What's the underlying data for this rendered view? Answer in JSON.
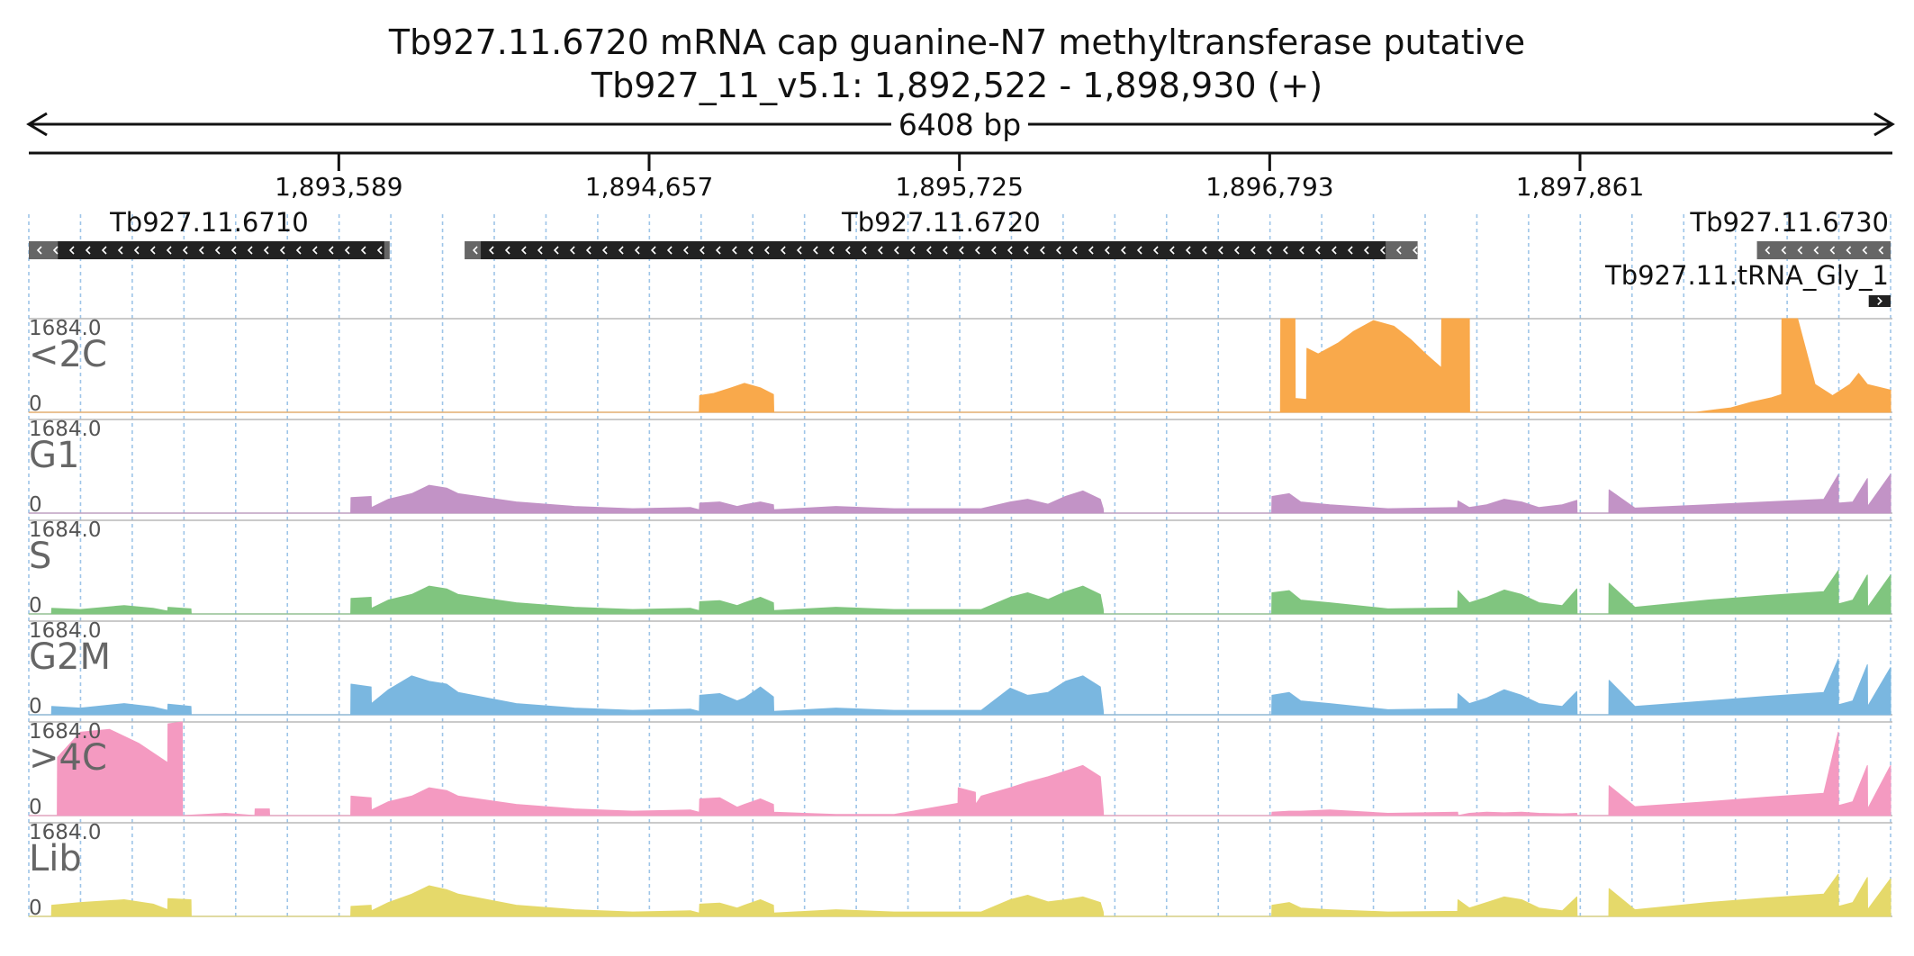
{
  "header": {
    "title": "Tb927.11.6720  mRNA cap guanine-N7 methyltransferase  putative",
    "locus": "Tb927_11_v5.1: 1,892,522 - 1,898,930 (+)",
    "span": "6408 bp"
  },
  "colors": {
    "axis": "#111111",
    "grid": "#9ec5e8",
    "gene_body": "#222222",
    "gene_utr": "#666666",
    "track_border": "#b8b8b8"
  },
  "chart_data": {
    "type": "area",
    "title": "Tb927.11.6720  mRNA cap guanine-N7 methyltransferase  putative",
    "xlabel": "",
    "ylabel": "",
    "xlim": [
      1892522,
      1898930
    ],
    "ticks": [
      {
        "value": 1893589,
        "label": "1,893,589"
      },
      {
        "value": 1894657,
        "label": "1,894,657"
      },
      {
        "value": 1895725,
        "label": "1,895,725"
      },
      {
        "value": 1896793,
        "label": "1,896,793"
      },
      {
        "value": 1897861,
        "label": "1,897,861"
      }
    ],
    "genes": [
      {
        "name": "Tb927.11.6710",
        "strand": "-",
        "start": 1892522,
        "end": 1893764,
        "utr_end": 1892622
      },
      {
        "name": "Tb927.11.6720",
        "strand": "-",
        "start": 1894022,
        "end": 1897302,
        "utr_end": 1897192
      },
      {
        "name": "Tb927.11.6730",
        "strand": "-",
        "start": 1898470,
        "end": 1898930,
        "utr_end": 1898930
      },
      {
        "name": "Tb927.11.tRNA_Gly_1",
        "strand": "+",
        "start": 1898855,
        "end": 1898930,
        "utr_end": 1898930
      }
    ],
    "series": [
      {
        "name": "<2C",
        "color": "#f9a94b",
        "max": 1684.0,
        "min": 0,
        "x": [
          1892522,
          1894830,
          1894831,
          1894880,
          1894940,
          1894985,
          1895040,
          1895085,
          1895086,
          1896830,
          1896831,
          1896880,
          1896881,
          1896920,
          1896921,
          1896960,
          1897030,
          1897080,
          1897150,
          1897220,
          1897280,
          1897330,
          1897384,
          1897385,
          1897440,
          1897441,
          1897480,
          1897481,
          1898260,
          1898380,
          1898450,
          1898520,
          1898555,
          1898556,
          1898610,
          1898670,
          1898730,
          1898790,
          1898820,
          1898850,
          1898930
        ],
        "y": [
          0,
          0,
          300,
          340,
          440,
          520,
          440,
          320,
          0,
          0,
          1684,
          1684,
          250,
          230,
          1150,
          1050,
          1250,
          1450,
          1650,
          1550,
          1300,
          1050,
          800,
          1684,
          1684,
          1684,
          1684,
          0,
          0,
          80,
          180,
          260,
          320,
          1684,
          1684,
          500,
          300,
          500,
          700,
          500,
          400
        ]
      },
      {
        "name": "G1",
        "color": "#c293c6",
        "max": 1684.0,
        "min": 0,
        "x": [
          1892522,
          1893630,
          1893631,
          1893700,
          1893701,
          1893760,
          1893840,
          1893900,
          1893960,
          1894000,
          1894200,
          1894400,
          1894600,
          1894800,
          1894830,
          1894831,
          1894900,
          1894960,
          1894985,
          1895040,
          1895085,
          1895086,
          1895300,
          1895500,
          1895800,
          1895900,
          1895960,
          1896030,
          1896090,
          1896150,
          1896210,
          1896220,
          1896221,
          1896800,
          1896801,
          1896860,
          1896900,
          1897000,
          1897200,
          1897440,
          1897441,
          1897480,
          1897540,
          1897600,
          1897660,
          1897720,
          1897800,
          1897850,
          1897851,
          1897960,
          1897961,
          1898050,
          1898300,
          1898500,
          1898700,
          1898750,
          1898751,
          1898800,
          1898850,
          1898851,
          1898930
        ],
        "y": [
          0,
          0,
          280,
          300,
          100,
          250,
          350,
          500,
          450,
          350,
          200,
          120,
          80,
          100,
          60,
          180,
          200,
          120,
          150,
          200,
          150,
          60,
          120,
          80,
          80,
          200,
          250,
          160,
          300,
          400,
          250,
          80,
          0,
          0,
          300,
          350,
          200,
          150,
          80,
          100,
          220,
          100,
          150,
          250,
          200,
          100,
          150,
          230,
          0,
          0,
          420,
          90,
          150,
          200,
          250,
          690,
          180,
          200,
          620,
          120,
          700
        ]
      },
      {
        "name": "S",
        "color": "#80c57f",
        "max": 1684.0,
        "min": 0,
        "x": [
          1892522,
          1892600,
          1892601,
          1892700,
          1892850,
          1892950,
          1893000,
          1893001,
          1893080,
          1893081,
          1893630,
          1893631,
          1893700,
          1893701,
          1893760,
          1893840,
          1893900,
          1893960,
          1894000,
          1894200,
          1894400,
          1894600,
          1894800,
          1894830,
          1894831,
          1894900,
          1894960,
          1894985,
          1895040,
          1895085,
          1895086,
          1895300,
          1895500,
          1895800,
          1895900,
          1895960,
          1896030,
          1896090,
          1896150,
          1896210,
          1896220,
          1896221,
          1896800,
          1896801,
          1896860,
          1896900,
          1897000,
          1897200,
          1897440,
          1897441,
          1897480,
          1897540,
          1897600,
          1897660,
          1897720,
          1897800,
          1897850,
          1897851,
          1897960,
          1897961,
          1898050,
          1898300,
          1898500,
          1898700,
          1898750,
          1898751,
          1898800,
          1898850,
          1898851,
          1898930
        ],
        "y": [
          0,
          0,
          100,
          80,
          150,
          100,
          50,
          120,
          90,
          0,
          0,
          280,
          300,
          100,
          250,
          350,
          500,
          450,
          350,
          200,
          120,
          80,
          100,
          60,
          220,
          240,
          150,
          200,
          300,
          200,
          60,
          120,
          80,
          80,
          300,
          380,
          260,
          400,
          500,
          350,
          80,
          0,
          0,
          380,
          420,
          250,
          200,
          90,
          110,
          420,
          200,
          300,
          430,
          350,
          200,
          150,
          450,
          0,
          0,
          550,
          120,
          250,
          330,
          400,
          780,
          180,
          250,
          700,
          120,
          700
        ]
      },
      {
        "name": "G2M",
        "color": "#7ab7e0",
        "max": 1684.0,
        "min": 0,
        "x": [
          1892522,
          1892600,
          1892601,
          1892700,
          1892850,
          1892950,
          1893000,
          1893001,
          1893080,
          1893081,
          1893630,
          1893631,
          1893700,
          1893701,
          1893760,
          1893840,
          1893900,
          1893960,
          1894000,
          1894200,
          1894400,
          1894600,
          1894800,
          1894830,
          1894831,
          1894900,
          1894960,
          1894985,
          1895040,
          1895085,
          1895086,
          1895300,
          1895500,
          1895800,
          1895900,
          1895960,
          1896030,
          1896090,
          1896150,
          1896210,
          1896220,
          1896221,
          1896800,
          1896801,
          1896860,
          1896900,
          1897000,
          1897200,
          1897440,
          1897441,
          1897480,
          1897540,
          1897600,
          1897660,
          1897720,
          1897800,
          1897850,
          1897851,
          1897960,
          1897961,
          1898050,
          1898300,
          1898500,
          1898700,
          1898750,
          1898751,
          1898800,
          1898850,
          1898851,
          1898930
        ],
        "y": [
          0,
          0,
          150,
          120,
          200,
          140,
          80,
          190,
          150,
          0,
          0,
          550,
          500,
          200,
          450,
          700,
          600,
          550,
          400,
          200,
          120,
          80,
          100,
          60,
          350,
          380,
          250,
          300,
          500,
          320,
          60,
          120,
          80,
          80,
          480,
          350,
          400,
          600,
          700,
          500,
          80,
          0,
          0,
          350,
          400,
          250,
          200,
          90,
          110,
          380,
          200,
          300,
          450,
          350,
          200,
          150,
          420,
          0,
          0,
          620,
          150,
          250,
          330,
          400,
          1000,
          180,
          250,
          900,
          150,
          850
        ]
      },
      {
        "name": ">4C",
        "color": "#f49ac1",
        "max": 1684.0,
        "min": 0,
        "x": [
          1892522,
          1892620,
          1892621,
          1892700,
          1892800,
          1892900,
          1893000,
          1893001,
          1893050,
          1893051,
          1893200,
          1893300,
          1893301,
          1893350,
          1893351,
          1893630,
          1893631,
          1893700,
          1893701,
          1893760,
          1893840,
          1893900,
          1893960,
          1894000,
          1894200,
          1894400,
          1894600,
          1894800,
          1894830,
          1894831,
          1894900,
          1894960,
          1894985,
          1895040,
          1895085,
          1895086,
          1895300,
          1895500,
          1895720,
          1895721,
          1895780,
          1895781,
          1895800,
          1895900,
          1895960,
          1896030,
          1896090,
          1896150,
          1896210,
          1896220,
          1896221,
          1896800,
          1896801,
          1896860,
          1896900,
          1897000,
          1897200,
          1897440,
          1897441,
          1897480,
          1897540,
          1897600,
          1897660,
          1897720,
          1897800,
          1897850,
          1897851,
          1897960,
          1897961,
          1898050,
          1898300,
          1898500,
          1898700,
          1898750,
          1898751,
          1898800,
          1898850,
          1898851,
          1898930
        ],
        "y": [
          0,
          0,
          1050,
          1500,
          1550,
          1300,
          950,
          1650,
          1684,
          0,
          40,
          0,
          120,
          120,
          0,
          0,
          350,
          320,
          100,
          250,
          350,
          500,
          450,
          350,
          200,
          120,
          80,
          100,
          60,
          300,
          320,
          150,
          200,
          300,
          200,
          60,
          20,
          20,
          220,
          500,
          420,
          200,
          350,
          500,
          600,
          700,
          800,
          900,
          700,
          100,
          0,
          0,
          60,
          80,
          80,
          100,
          40,
          60,
          0,
          40,
          60,
          50,
          60,
          40,
          30,
          40,
          0,
          0,
          540,
          160,
          250,
          330,
          400,
          1500,
          180,
          250,
          900,
          120,
          900
        ]
      },
      {
        "name": "Lib",
        "color": "#e5d96a",
        "max": 1684.0,
        "min": 0,
        "x": [
          1892522,
          1892600,
          1892601,
          1892700,
          1892850,
          1892950,
          1893000,
          1893001,
          1893080,
          1893081,
          1893630,
          1893631,
          1893700,
          1893701,
          1893760,
          1893840,
          1893900,
          1893960,
          1894000,
          1894200,
          1894400,
          1894600,
          1894800,
          1894830,
          1894831,
          1894900,
          1894960,
          1894985,
          1895040,
          1895085,
          1895086,
          1895300,
          1895500,
          1895800,
          1895900,
          1895960,
          1896030,
          1896090,
          1896150,
          1896210,
          1896220,
          1896221,
          1896800,
          1896801,
          1896860,
          1896900,
          1897000,
          1897200,
          1897440,
          1897441,
          1897480,
          1897540,
          1897600,
          1897660,
          1897720,
          1897800,
          1897850,
          1897851,
          1897960,
          1897961,
          1898050,
          1898300,
          1898500,
          1898700,
          1898750,
          1898751,
          1898800,
          1898850,
          1898851,
          1898930
        ],
        "y": [
          0,
          0,
          200,
          250,
          300,
          220,
          120,
          320,
          300,
          0,
          0,
          180,
          200,
          100,
          250,
          400,
          550,
          480,
          400,
          200,
          120,
          80,
          100,
          60,
          220,
          240,
          150,
          200,
          300,
          200,
          60,
          120,
          80,
          80,
          300,
          380,
          260,
          300,
          350,
          250,
          80,
          0,
          0,
          200,
          250,
          150,
          120,
          80,
          90,
          300,
          150,
          250,
          350,
          300,
          150,
          100,
          350,
          0,
          0,
          500,
          120,
          250,
          330,
          400,
          760,
          180,
          250,
          700,
          120,
          680
        ]
      }
    ]
  }
}
